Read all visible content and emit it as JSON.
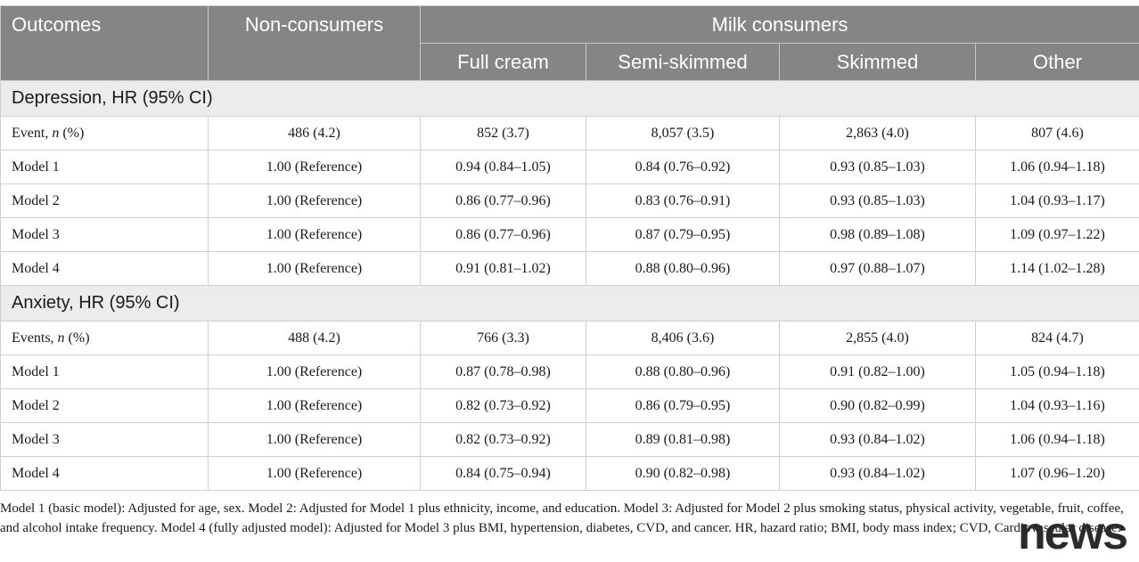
{
  "header": {
    "outcomes": "Outcomes",
    "non_consumers": "Non-consumers",
    "milk_consumers": "Milk consumers",
    "sub": [
      "Full cream",
      "Semi-skimmed",
      "Skimmed",
      "Other"
    ]
  },
  "sections": [
    {
      "title": "Depression, HR (95% CI)",
      "rows": [
        {
          "label": "Event, ",
          "italic": "n",
          "label_tail": " (%)",
          "values": [
            "486 (4.2)",
            "852 (3.7)",
            "8,057 (3.5)",
            "2,863 (4.0)",
            "807 (4.6)"
          ]
        },
        {
          "label": "Model 1",
          "values": [
            "1.00 (Reference)",
            "0.94 (0.84–1.05)",
            "0.84 (0.76–0.92)",
            "0.93 (0.85–1.03)",
            "1.06 (0.94–1.18)"
          ]
        },
        {
          "label": "Model 2",
          "values": [
            "1.00 (Reference)",
            "0.86 (0.77–0.96)",
            "0.83 (0.76–0.91)",
            "0.93 (0.85–1.03)",
            "1.04 (0.93–1.17)"
          ]
        },
        {
          "label": "Model 3",
          "values": [
            "1.00 (Reference)",
            "0.86 (0.77–0.96)",
            "0.87 (0.79–0.95)",
            "0.98 (0.89–1.08)",
            "1.09 (0.97–1.22)"
          ]
        },
        {
          "label": "Model 4",
          "values": [
            "1.00 (Reference)",
            "0.91 (0.81–1.02)",
            "0.88 (0.80–0.96)",
            "0.97 (0.88–1.07)",
            "1.14 (1.02–1.28)"
          ]
        }
      ]
    },
    {
      "title": "Anxiety, HR (95% CI)",
      "rows": [
        {
          "label": "Events, ",
          "italic": "n",
          "label_tail": " (%)",
          "values": [
            "488 (4.2)",
            "766 (3.3)",
            "8,406 (3.6)",
            "2,855 (4.0)",
            "824 (4.7)"
          ]
        },
        {
          "label": "Model 1",
          "values": [
            "1.00 (Reference)",
            "0.87 (0.78–0.98)",
            "0.88 (0.80–0.96)",
            "0.91 (0.82–1.00)",
            "1.05 (0.94–1.18)"
          ]
        },
        {
          "label": "Model 2",
          "values": [
            "1.00 (Reference)",
            "0.82 (0.73–0.92)",
            "0.86 (0.79–0.95)",
            "0.90 (0.82–0.99)",
            "1.04 (0.93–1.16)"
          ]
        },
        {
          "label": "Model 3",
          "values": [
            "1.00 (Reference)",
            "0.82 (0.73–0.92)",
            "0.89 (0.81–0.98)",
            "0.93 (0.84–1.02)",
            "1.06 (0.94–1.18)"
          ]
        },
        {
          "label": "Model 4",
          "values": [
            "1.00 (Reference)",
            "0.84 (0.75–0.94)",
            "0.90 (0.82–0.98)",
            "0.93 (0.84–1.02)",
            "1.07 (0.96–1.20)"
          ]
        }
      ]
    }
  ],
  "footnote": "Model 1 (basic model): Adjusted for age, sex. Model 2: Adjusted for Model 1 plus ethnicity, income, and education. Model 3: Adjusted for Model 2 plus smoking status, physical activity, vegetable, fruit, coffee, and alcohol intake frequency. Model 4 (fully adjusted model): Adjusted for Model 3 plus BMI, hypertension, diabetes, CVD, and cancer. HR, hazard ratio; BMI, body mass index; CVD, Cardiovascular disease.",
  "watermark": "news"
}
